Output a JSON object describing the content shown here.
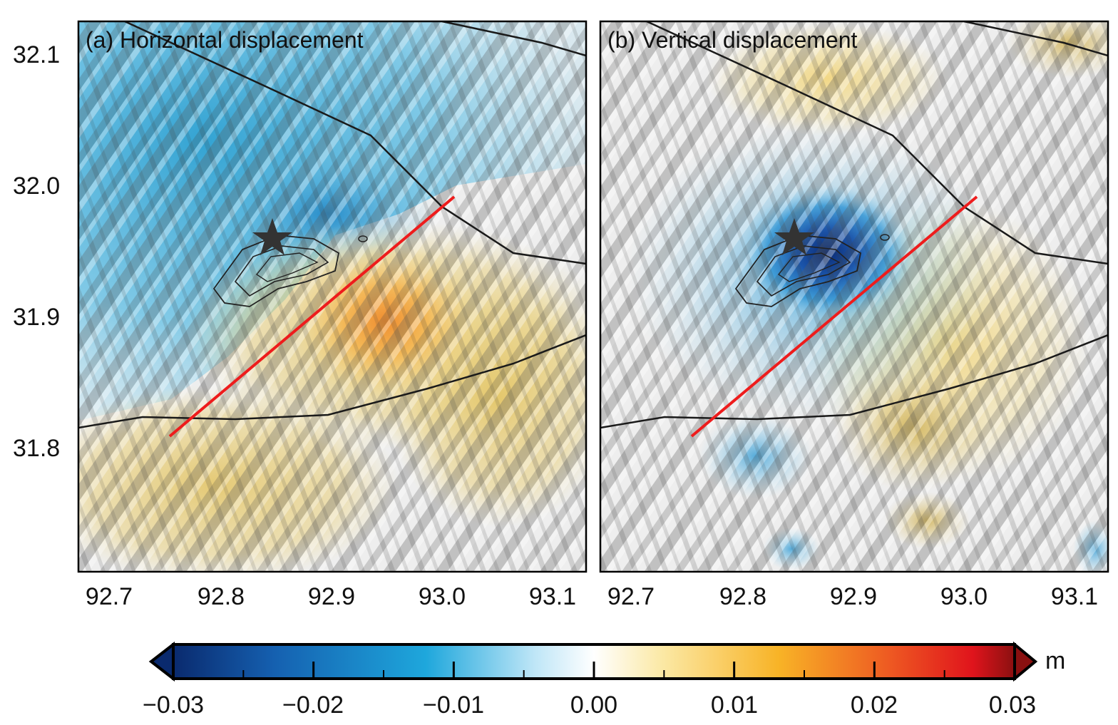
{
  "panels": [
    {
      "title": "(a) Horizontal displacement",
      "id": "horizontal"
    },
    {
      "title": "(b) Vertical displacement",
      "id": "vertical"
    }
  ],
  "axes": {
    "x_ticks": [
      "92.7",
      "92.8",
      "92.9",
      "93.0",
      "93.1"
    ],
    "y_ticks": [
      "32.1",
      "32.0",
      "31.9",
      "31.8"
    ]
  },
  "colorbar": {
    "unit": "m",
    "ticks": [
      "−0.03",
      "−0.02",
      "−0.01",
      "0.00",
      "0.01",
      "0.02",
      "0.03"
    ],
    "min": -0.03,
    "max": 0.03,
    "colors": [
      "#0a2a6e",
      "#1560b0",
      "#1ea7dc",
      "#bfe6f7",
      "#ffffff",
      "#fbe9a6",
      "#f8b326",
      "#ee5a22",
      "#e0141c",
      "#8a1010"
    ]
  },
  "map_features": {
    "profile_line_color": "#ee1c1c",
    "fault_color": "#1a1a1a",
    "epicenter_symbol": "star"
  }
}
